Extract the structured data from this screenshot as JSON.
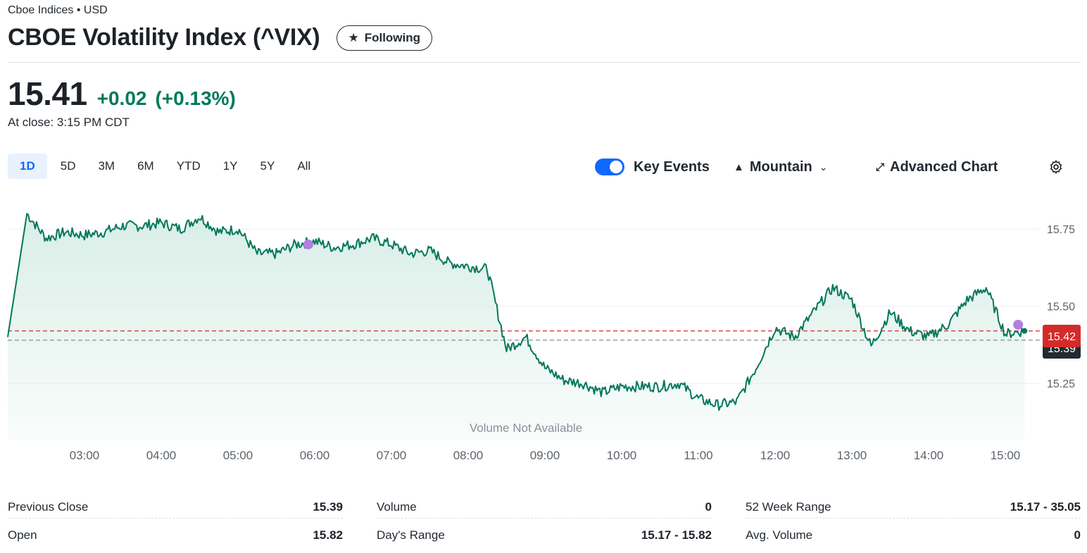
{
  "header": {
    "breadcrumb": "Cboe Indices • USD",
    "title": "CBOE Volatility Index (^VIX)",
    "follow_label": "Following"
  },
  "quote": {
    "price": "15.41",
    "change": "+0.02",
    "change_pct": "(+0.13%)",
    "close_time": "At close: 3:15 PM CDT",
    "positive_color": "#007a5a"
  },
  "ranges": [
    "1D",
    "5D",
    "3M",
    "6M",
    "YTD",
    "1Y",
    "5Y",
    "All"
  ],
  "active_range": "1D",
  "controls": {
    "key_events": "Key Events",
    "chart_type": "Mountain",
    "advanced_chart": "Advanced Chart",
    "key_events_on": true
  },
  "chart": {
    "volume_note": "Volume Not Available",
    "last_price_tag": "15.42",
    "prev_close_tag": "15.39",
    "line_color": "#00785a",
    "fill_color": "#d7ede6",
    "last_price_color": "#d52a2a"
  },
  "chart_data": {
    "type": "area",
    "x_ticks": [
      "03:00",
      "04:00",
      "05:00",
      "06:00",
      "07:00",
      "08:00",
      "09:00",
      "10:00",
      "11:00",
      "12:00",
      "13:00",
      "14:00",
      "15:00"
    ],
    "y_ticks": [
      "15.75",
      "15.50",
      "15.25"
    ],
    "ylim": [
      15.1,
      15.83
    ],
    "previous_close": 15.39,
    "last": 15.42,
    "series": [
      {
        "x": [
          "02:00",
          "02:15",
          "02:30",
          "02:45",
          "03:00",
          "03:15",
          "03:30",
          "03:45",
          "04:00",
          "04:15",
          "04:30",
          "04:45",
          "05:00",
          "05:15",
          "05:30",
          "05:45",
          "06:00",
          "06:15",
          "06:30",
          "06:45",
          "07:00",
          "07:15",
          "07:30",
          "07:45",
          "08:00",
          "08:15",
          "08:30",
          "08:45",
          "09:00",
          "09:15",
          "09:30",
          "09:45",
          "10:00",
          "10:15",
          "10:30",
          "10:45",
          "11:00",
          "11:15",
          "11:30",
          "11:45",
          "12:00",
          "12:15",
          "12:30",
          "12:45",
          "13:00",
          "13:15",
          "13:30",
          "13:45",
          "14:00",
          "14:15",
          "14:30",
          "14:45",
          "15:00",
          "15:15"
        ],
        "y": [
          15.4,
          15.8,
          15.72,
          15.74,
          15.73,
          15.74,
          15.76,
          15.76,
          15.77,
          15.75,
          15.79,
          15.74,
          15.75,
          15.67,
          15.67,
          15.7,
          15.71,
          15.69,
          15.7,
          15.72,
          15.7,
          15.67,
          15.68,
          15.64,
          15.63,
          15.62,
          15.36,
          15.4,
          15.3,
          15.26,
          15.25,
          15.22,
          15.24,
          15.24,
          15.24,
          15.25,
          15.2,
          15.18,
          15.19,
          15.3,
          15.43,
          15.4,
          15.48,
          15.56,
          15.52,
          15.37,
          15.48,
          15.42,
          15.4,
          15.44,
          15.52,
          15.56,
          15.41,
          15.42
        ]
      }
    ]
  },
  "key_events": [
    {
      "x": "05:55",
      "y": 15.7
    },
    {
      "x": "15:10",
      "y": 15.44
    }
  ],
  "stats": {
    "col1": [
      {
        "label": "Previous Close",
        "value": "15.39"
      },
      {
        "label": "Open",
        "value": "15.82"
      }
    ],
    "col2": [
      {
        "label": "Volume",
        "value": "0"
      },
      {
        "label": "Day's Range",
        "value": "15.17 - 15.82"
      }
    ],
    "col3": [
      {
        "label": "52 Week Range",
        "value": "15.17 - 35.05"
      },
      {
        "label": "Avg. Volume",
        "value": "0"
      }
    ]
  }
}
